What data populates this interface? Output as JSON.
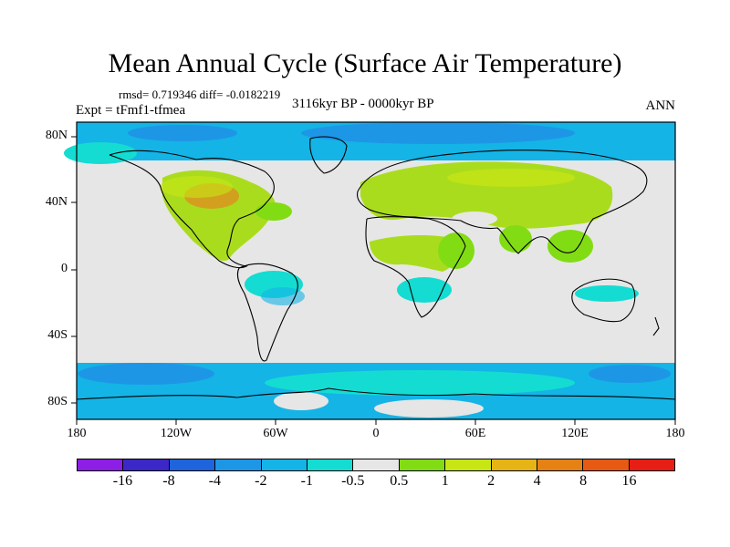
{
  "title": "Mean Annual Cycle (Surface Air Temperature)",
  "stats": "rmsd= 0.719346 diff= -0.0182219",
  "experiment": "Expt = tFmf1-tfmea",
  "period": "3116kyr BP - 0000kyr BP",
  "season": "ANN",
  "lat_labels": [
    "80N",
    "40N",
    "0",
    "40S",
    "80S"
  ],
  "lon_labels": [
    "180",
    "120W",
    "60W",
    "0",
    "60E",
    "120E",
    "180"
  ],
  "colorbar": {
    "labels": [
      "-16",
      "-8",
      "-4",
      "-2",
      "-1",
      "-0.5",
      "0.5",
      "1",
      "2",
      "4",
      "8",
      "16"
    ],
    "colors": [
      "#8c1ee6",
      "#3c28c8",
      "#1e64dc",
      "#1e96e6",
      "#14b4e6",
      "#14dcd2",
      "#e6e6e6",
      "#82dc14",
      "#c8e614",
      "#e6b414",
      "#e68214",
      "#e65a14",
      "#e61e14"
    ]
  },
  "colors": {
    "ocean": "#e6e6e6",
    "warm_land": "#aadc1e",
    "hot_core": "#d2a01e",
    "cool_high_lat": "#14b4e6",
    "coolest": "#1e82e6",
    "mild_cool": "#14dcd2"
  }
}
